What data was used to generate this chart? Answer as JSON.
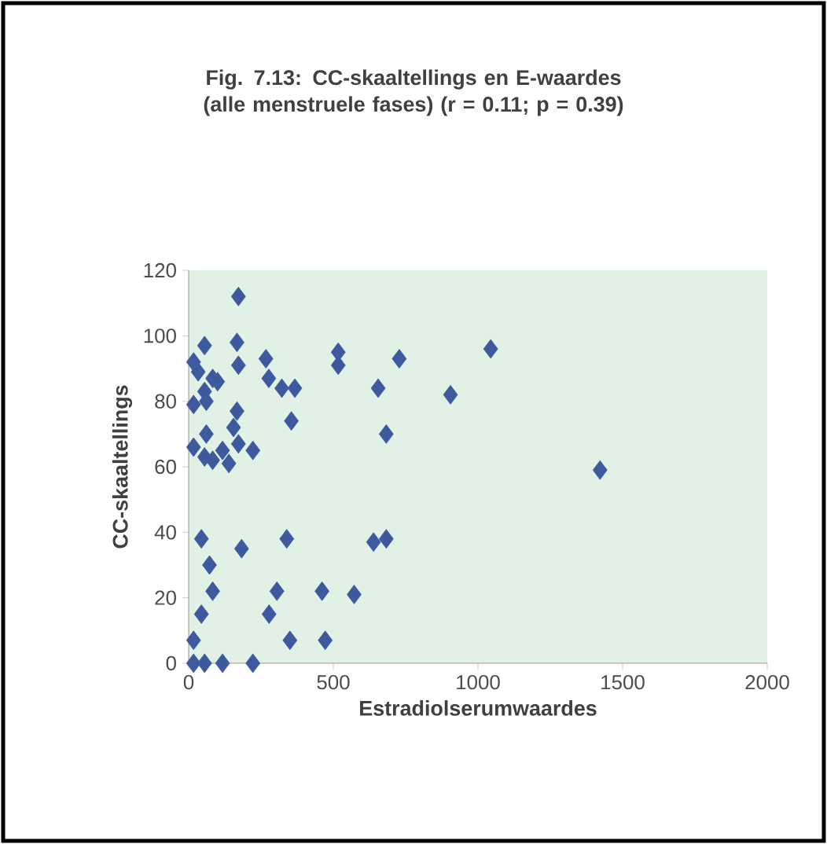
{
  "chart_data": {
    "type": "scatter",
    "title": "Fig. 7.13: CC-skaaltellings en E-waardes (alle menstruele fases) (r = 0.11; p = 0.39)",
    "xlabel": "Estradiolserumwaardes",
    "ylabel": "CC-skaaltellings",
    "x": [
      172,
      167,
      55,
      17,
      172,
      267,
      517,
      517,
      728,
      905,
      655,
      683,
      355,
      277,
      322,
      367,
      33,
      83,
      100,
      55,
      17,
      61,
      167,
      155,
      17,
      61,
      83,
      117,
      172,
      222,
      55,
      139,
      44,
      183,
      339,
      639,
      683,
      72,
      83,
      305,
      461,
      572,
      278,
      350,
      472,
      44,
      17,
      17,
      55,
      117,
      222,
      1044,
      1422
    ],
    "values": [
      112,
      98,
      97,
      92,
      91,
      93,
      95,
      91,
      93,
      82,
      84,
      70,
      74,
      87,
      84,
      84,
      89,
      87,
      86,
      83,
      79,
      80,
      77,
      72,
      66,
      70,
      62,
      65,
      67,
      65,
      63,
      61,
      38,
      35,
      38,
      37,
      38,
      30,
      22,
      22,
      22,
      21,
      15,
      7,
      7,
      15,
      7,
      0,
      0,
      0,
      0,
      96,
      59
    ],
    "color": "#3d5a9e",
    "marker": "diamond",
    "xlim": [
      0,
      2000
    ],
    "ylim": [
      0,
      120
    ],
    "xticks": [
      0,
      500,
      1000,
      1500,
      2000
    ],
    "yticks": [
      0,
      20,
      40,
      60,
      80,
      100,
      120
    ],
    "grid": false
  }
}
